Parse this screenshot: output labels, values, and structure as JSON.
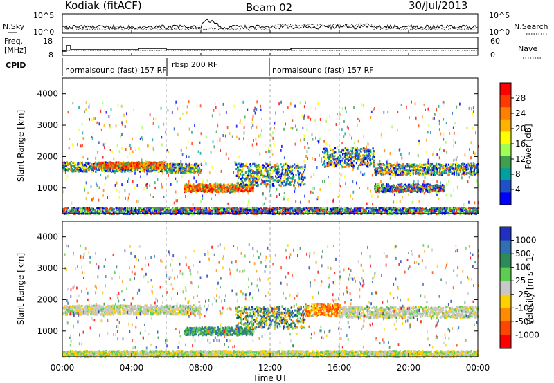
{
  "header": {
    "station": "Kodiak (fitACF)",
    "beam": "Beam 02",
    "date": "30/Jul/2013"
  },
  "noise_panel": {
    "left_label": "N.Sky",
    "right_label": "N.Search",
    "left_ticks": [
      "10^5",
      "10^0"
    ],
    "right_ticks": [
      "10^5",
      "10^0"
    ]
  },
  "freq_panel": {
    "left_label_line1": "Freq.",
    "left_label_line2": "[MHz]",
    "right_label": "Nave",
    "left_ticks": [
      "18",
      "8"
    ],
    "right_ticks": [
      "60",
      "0"
    ]
  },
  "cpid": {
    "label": "CPID",
    "segments": [
      {
        "text": "normalsound (fast) 157 RF",
        "start_hour": 0.1
      },
      {
        "text": "rbsp 200 RF",
        "start_hour": 6.3
      },
      {
        "text": "normalsound (fast) 157 RF",
        "start_hour": 12.0
      }
    ]
  },
  "colorbars": {
    "power": {
      "title": "Power [dB]",
      "ticks": [
        "28",
        "24",
        "20",
        "16",
        "12",
        "8",
        "4"
      ],
      "colors": [
        "#ff0000",
        "#ff3a00",
        "#ff7f00",
        "#ffb300",
        "#ffff00",
        "#a0ff50",
        "#40a050",
        "#00a0a0",
        "#1e50c8",
        "#0000ff"
      ]
    },
    "velocity": {
      "title": "Velocity [m s^-1]",
      "ticks": [
        "1000",
        "500",
        "100",
        "25",
        "-25",
        "-100",
        "-500",
        "-1000"
      ],
      "colors": [
        "#2030c0",
        "#3070b0",
        "#2e8b57",
        "#5ccd50",
        "#c8c8c8",
        "#ffd000",
        "#ff8c00",
        "#ff4500",
        "#ff0000"
      ]
    }
  },
  "chart_data": [
    {
      "type": "heatmap",
      "name": "power",
      "ylabel": "Slant Range [km]",
      "yticks": [
        1000,
        2000,
        3000,
        4000
      ],
      "ylim": [
        180,
        4500
      ],
      "xlim": [
        0,
        24
      ],
      "xticks": [
        "00:00",
        "04:00",
        "08:00",
        "12:00",
        "16:00",
        "20:00",
        "00:00"
      ],
      "bands": [
        {
          "t0": 0.0,
          "t1": 6.0,
          "r0": 1550,
          "r1": 1850,
          "level": "mid"
        },
        {
          "t0": 2.0,
          "t1": 6.0,
          "r0": 1650,
          "r1": 1850,
          "level": "high"
        },
        {
          "t0": 6.0,
          "t1": 8.0,
          "r0": 1500,
          "r1": 1800,
          "level": "mid"
        },
        {
          "t0": 7.0,
          "t1": 11.0,
          "r0": 900,
          "r1": 1150,
          "level": "high"
        },
        {
          "t0": 10.0,
          "t1": 14.0,
          "r0": 1100,
          "r1": 1800,
          "level": "mid"
        },
        {
          "t0": 15.0,
          "t1": 18.0,
          "r0": 1700,
          "r1": 2300,
          "level": "mid"
        },
        {
          "t0": 18.0,
          "t1": 24.0,
          "r0": 1450,
          "r1": 1800,
          "level": "mid"
        },
        {
          "t0": 18.0,
          "t1": 22.0,
          "r0": 900,
          "r1": 1150,
          "level": "low"
        },
        {
          "t0": 0.0,
          "t1": 24.0,
          "r0": 200,
          "r1": 400,
          "level": "low"
        }
      ]
    },
    {
      "type": "heatmap",
      "name": "velocity",
      "ylabel": "Slant Range [km]",
      "yticks": [
        1000,
        2000,
        3000,
        4000
      ],
      "ylim": [
        180,
        4500
      ],
      "xlim": [
        0,
        24
      ],
      "xlabel": "Time UT",
      "xticks": [
        "00:00",
        "04:00",
        "08:00",
        "12:00",
        "16:00",
        "20:00",
        "00:00"
      ],
      "bands": [
        {
          "t0": 0.0,
          "t1": 8.0,
          "r0": 1550,
          "r1": 1850,
          "level": "zero"
        },
        {
          "t0": 7.0,
          "t1": 11.0,
          "r0": 900,
          "r1": 1150,
          "level": "towards"
        },
        {
          "t0": 10.0,
          "t1": 14.0,
          "r0": 1100,
          "r1": 1800,
          "level": "mixed"
        },
        {
          "t0": 14.0,
          "t1": 16.0,
          "r0": 1500,
          "r1": 1900,
          "level": "away"
        },
        {
          "t0": 16.0,
          "t1": 24.0,
          "r0": 1450,
          "r1": 1800,
          "level": "zero"
        },
        {
          "t0": 0.0,
          "t1": 24.0,
          "r0": 200,
          "r1": 400,
          "level": "ground"
        }
      ]
    }
  ]
}
